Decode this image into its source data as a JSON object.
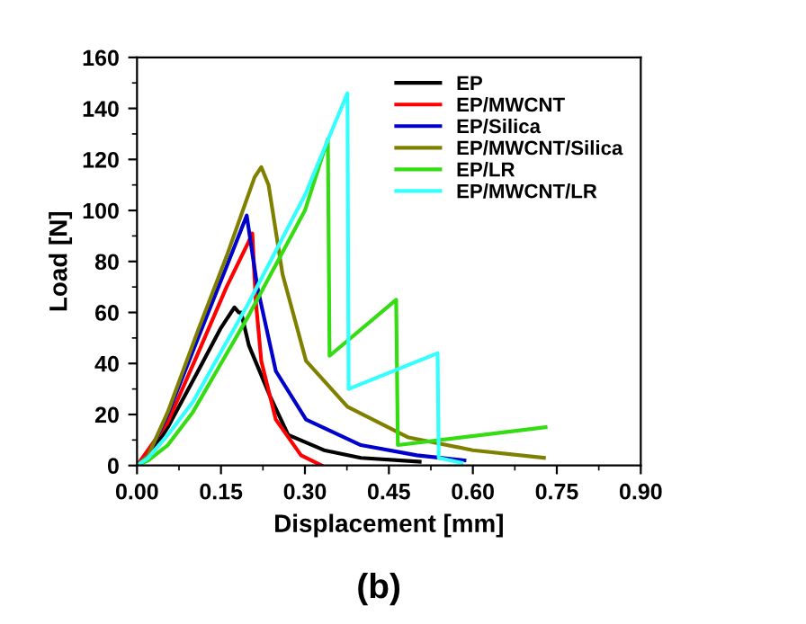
{
  "chart_data": {
    "type": "line",
    "xlabel": "Displacement [mm]",
    "ylabel": "Load [N]",
    "annotations": [
      "(b)"
    ],
    "xlim": [
      0,
      0.9
    ],
    "xticks": [
      {
        "value": 0,
        "label": "0.00"
      },
      {
        "value": 0.15,
        "label": "0.15"
      },
      {
        "value": 0.3,
        "label": "0.30"
      },
      {
        "value": 0.45,
        "label": "0.45"
      },
      {
        "value": 0.6,
        "label": "0.60"
      },
      {
        "value": 0.75,
        "label": "0.75"
      },
      {
        "value": 0.9,
        "label": "0.90"
      }
    ],
    "ylim": [
      0,
      160
    ],
    "yticks": [
      0,
      20,
      40,
      60,
      80,
      100,
      120,
      140,
      160
    ],
    "legend": "top right",
    "grid": false,
    "marker": "none",
    "line_style": "solid",
    "series": [
      {
        "name": "EP",
        "color": "#000000",
        "x": [
          0,
          0.02,
          0.055,
          0.109,
          0.15,
          0.174,
          0.182,
          0.186,
          0.2,
          0.238,
          0.27,
          0.334,
          0.4,
          0.505
        ],
        "values": [
          0,
          3,
          15,
          37,
          54,
          62,
          60,
          60,
          47,
          27,
          12,
          6,
          3,
          1.5
        ]
      },
      {
        "name": "EP/MWCNT",
        "color": "#ff0000",
        "x": [
          0,
          0.055,
          0.109,
          0.16,
          0.2,
          0.206,
          0.212,
          0.222,
          0.248,
          0.293,
          0.33
        ],
        "values": [
          0,
          17,
          44,
          70,
          88,
          91,
          65,
          41,
          18,
          4,
          0
        ]
      },
      {
        "name": "EP/Silica",
        "color": "#0000cc",
        "x": [
          0,
          0.02,
          0.055,
          0.109,
          0.16,
          0.196,
          0.215,
          0.248,
          0.302,
          0.4,
          0.5,
          0.585
        ],
        "values": [
          0,
          4,
          20,
          50,
          78,
          98,
          70,
          37,
          18,
          8,
          4,
          2
        ]
      },
      {
        "name": "EP/MWCNT/Silica",
        "color": "#808000",
        "x": [
          0,
          0.02,
          0.055,
          0.109,
          0.16,
          0.21,
          0.222,
          0.235,
          0.26,
          0.302,
          0.376,
          0.485,
          0.6,
          0.727
        ],
        "values": [
          0,
          4,
          21,
          53,
          82,
          113,
          117,
          110,
          75,
          41,
          23,
          11,
          6,
          3
        ]
      },
      {
        "name": "EP/LR",
        "color": "#33dd11",
        "x": [
          0,
          0.02,
          0.055,
          0.1,
          0.2,
          0.3,
          0.341,
          0.344,
          0.463,
          0.466,
          0.73
        ],
        "values": [
          0,
          2,
          8,
          21,
          59,
          100,
          128,
          43,
          65,
          8,
          15
        ]
      },
      {
        "name": "EP/MWCNT/LR",
        "color": "#33ffff",
        "x": [
          0,
          0.02,
          0.055,
          0.1,
          0.2,
          0.3,
          0.376,
          0.378,
          0.537,
          0.539,
          0.58
        ],
        "values": [
          0,
          3,
          12,
          25,
          64,
          106,
          146,
          30,
          44,
          3,
          1
        ]
      }
    ]
  }
}
